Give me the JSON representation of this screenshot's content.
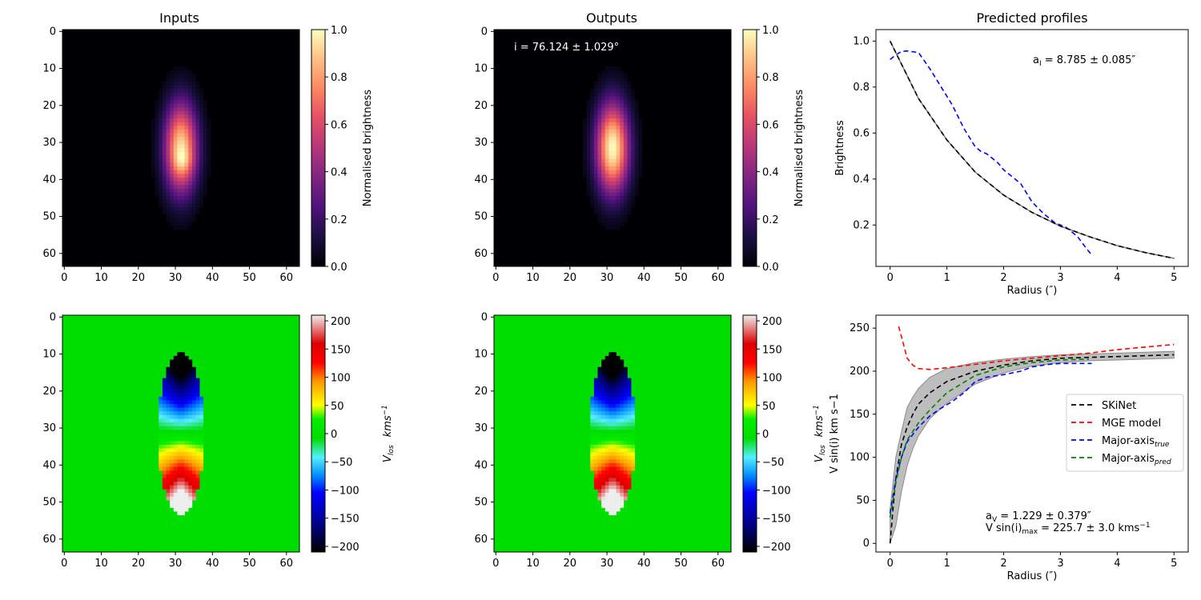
{
  "panels": {
    "inputs_title": "Inputs",
    "outputs_title": "Outputs",
    "profiles_title": "Predicted profiles"
  },
  "colorbars": {
    "brightness": {
      "label": "Normalised brightness",
      "ticks": [
        "0.0",
        "0.2",
        "0.4",
        "0.6",
        "0.8",
        "1.0"
      ],
      "range": [
        0,
        1
      ],
      "colormap": "magma"
    },
    "velocity": {
      "label_main": "V",
      "label_sub": "los",
      "label_units": "kms",
      "label_exp": "−1",
      "ticks": [
        "200",
        "150",
        "100",
        "50",
        "0",
        "−50",
        "−100",
        "−150",
        "−200"
      ],
      "range": [
        -210,
        210
      ],
      "colormap": "nipy_spectral-like"
    }
  },
  "image_axes": {
    "xticks": [
      "0",
      "10",
      "20",
      "30",
      "40",
      "50",
      "60"
    ],
    "yticks": [
      "0",
      "10",
      "20",
      "30",
      "40",
      "50",
      "60"
    ]
  },
  "annotations": {
    "inclination": "i = 76.124 ± 1.029°",
    "a_I": "a",
    "a_I_sub": "I",
    "a_I_rest": " = 8.785 ± 0.085″",
    "a_V": "a",
    "a_V_sub": "V",
    "a_V_rest": " = 1.229 ± 0.379″",
    "vmax_pre": "V sin(i)",
    "vmax_sub": "max",
    "vmax_rest": " = 225.7 ± 3.0 kms",
    "vmax_exp": "−1"
  },
  "chart_data": [
    {
      "type": "heatmap",
      "title": "Inputs",
      "quantity": "Normalised brightness",
      "grid_size": [
        64,
        64
      ],
      "peak_center": [
        32,
        31
      ],
      "clim": [
        0,
        1
      ]
    },
    {
      "type": "heatmap",
      "title": "Outputs",
      "quantity": "Normalised brightness",
      "grid_size": [
        64,
        64
      ],
      "peak_center": [
        32,
        31
      ],
      "clim": [
        0,
        1
      ]
    },
    {
      "type": "line",
      "title": "Predicted profiles",
      "xlabel": "Radius (″)",
      "ylabel": "Brightness",
      "xlim": [
        -0.25,
        5.25
      ],
      "ylim": [
        0.02,
        1.05
      ],
      "xticks": [
        0,
        1,
        2,
        3,
        4,
        5
      ],
      "yticks": [
        0.2,
        0.4,
        0.6,
        0.8,
        1.0
      ],
      "series": [
        {
          "color": "#0000ff",
          "dash": true,
          "x": [
            0,
            0.1,
            0.2,
            0.3,
            0.5,
            0.7,
            0.9,
            1.1,
            1.3,
            1.5,
            1.6,
            1.7,
            1.8,
            1.9,
            2.0,
            2.1,
            2.3,
            2.5,
            2.7,
            2.9,
            3.1,
            3.3,
            3.45,
            3.55
          ],
          "y": [
            0.92,
            0.94,
            0.955,
            0.957,
            0.95,
            0.88,
            0.8,
            0.72,
            0.62,
            0.54,
            0.52,
            0.51,
            0.49,
            0.47,
            0.44,
            0.42,
            0.38,
            0.3,
            0.25,
            0.21,
            0.19,
            0.15,
            0.1,
            0.07
          ]
        },
        {
          "color": "#808080",
          "dash": false,
          "x": [
            0,
            0.5,
            1,
            1.5,
            2,
            2.5,
            3,
            3.5,
            4,
            4.5,
            5
          ],
          "y": [
            1.0,
            0.75,
            0.57,
            0.43,
            0.33,
            0.255,
            0.195,
            0.15,
            0.11,
            0.08,
            0.055
          ]
        },
        {
          "color": "#000000",
          "dash": true,
          "x": [
            0,
            0.5,
            1,
            1.5,
            2,
            2.5,
            3,
            3.5,
            4,
            4.5,
            5
          ],
          "y": [
            1.0,
            0.75,
            0.57,
            0.43,
            0.33,
            0.255,
            0.195,
            0.15,
            0.11,
            0.08,
            0.055
          ]
        }
      ]
    },
    {
      "type": "heatmap",
      "title": "",
      "quantity": "V los (kms−1)",
      "grid_size": [
        64,
        64
      ],
      "clim": [
        -210,
        210
      ]
    },
    {
      "type": "heatmap",
      "title": "",
      "quantity": "V los (kms−1)",
      "grid_size": [
        64,
        64
      ],
      "clim": [
        -210,
        210
      ]
    },
    {
      "type": "line",
      "title": "",
      "xlabel": "Radius (″)",
      "ylabel": "V sin(i) km s−1",
      "xlim": [
        -0.25,
        5.25
      ],
      "ylim": [
        -10,
        265
      ],
      "xticks": [
        0,
        1,
        2,
        3,
        4,
        5
      ],
      "yticks": [
        0,
        50,
        100,
        150,
        200,
        250
      ],
      "legend_position": "center-right",
      "series": [
        {
          "name": "SKiNet",
          "legend_sub": "",
          "color": "#000000",
          "x": [
            0,
            0.05,
            0.1,
            0.2,
            0.3,
            0.4,
            0.5,
            0.7,
            1,
            1.5,
            2,
            2.5,
            3,
            3.5,
            4,
            4.5,
            5
          ],
          "y": [
            0,
            40,
            75,
            115,
            135,
            150,
            162,
            175,
            188,
            200,
            207,
            212,
            215,
            216,
            217,
            218,
            219
          ]
        },
        {
          "name": "MGE model",
          "legend_sub": "",
          "color": "#ff0000",
          "x": [
            0.15,
            0.2,
            0.3,
            0.4,
            0.5,
            0.7,
            1,
            1.5,
            2,
            2.5,
            3,
            3.5,
            4,
            4.5,
            5
          ],
          "y": [
            252,
            240,
            215,
            207,
            203,
            202,
            204,
            208,
            212,
            215,
            218,
            221,
            225,
            228,
            231
          ]
        },
        {
          "name": "Major-axis",
          "legend_sub": "true",
          "color": "#0000ff",
          "x": [
            0,
            0.1,
            0.2,
            0.3,
            0.5,
            0.7,
            0.9,
            1.1,
            1.3,
            1.5,
            1.7,
            2.0,
            2.3,
            2.5,
            2.8,
            3.0,
            3.2,
            3.55
          ],
          "y": [
            35,
            75,
            100,
            118,
            135,
            148,
            157,
            165,
            175,
            188,
            193,
            196,
            200,
            205,
            208,
            209,
            209,
            209
          ]
        },
        {
          "name": "Major-axis",
          "legend_sub": "pred",
          "color": "#008000",
          "x": [
            0,
            0.1,
            0.2,
            0.3,
            0.5,
            0.7,
            1,
            1.5,
            2,
            2.5,
            3,
            3.5
          ],
          "y": [
            30,
            70,
            100,
            120,
            140,
            155,
            175,
            195,
            205,
            210,
            213,
            214
          ]
        }
      ],
      "band": {
        "x": [
          0,
          0.1,
          0.2,
          0.3,
          0.4,
          0.5,
          0.7,
          1,
          1.5,
          2,
          2.5,
          3,
          3.5,
          4,
          4.5,
          5
        ],
        "upper": [
          40,
          100,
          130,
          158,
          170,
          180,
          193,
          203,
          210,
          214,
          217,
          219,
          220,
          221,
          222,
          223
        ],
        "lower": [
          0,
          20,
          60,
          90,
          110,
          125,
          145,
          163,
          185,
          198,
          206,
          210,
          212,
          213,
          214,
          215
        ],
        "color": "#bdbdbd"
      }
    }
  ]
}
